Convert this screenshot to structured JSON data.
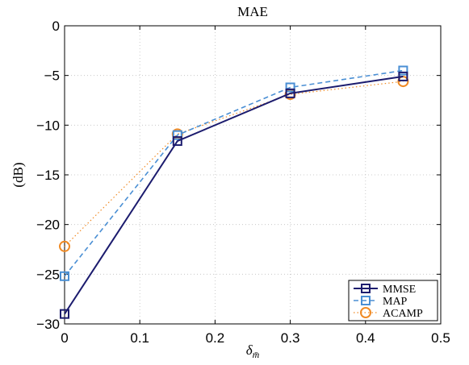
{
  "chart_data": {
    "type": "line",
    "title": "MAE",
    "xlabel": "δ",
    "xlabel_sub": "m̄",
    "ylabel": "(dB)",
    "xlim": [
      0,
      0.5
    ],
    "ylim": [
      -30,
      0
    ],
    "xticks": [
      0,
      0.1,
      0.2,
      0.3,
      0.4,
      0.5
    ],
    "xtick_labels": [
      "0",
      "0.1",
      "0.2",
      "0.3",
      "0.4",
      "0.5"
    ],
    "yticks": [
      0,
      -5,
      -10,
      -15,
      -20,
      -25,
      -30
    ],
    "ytick_labels": [
      "0",
      "−5",
      "−10",
      "−15",
      "−20",
      "−25",
      "−30"
    ],
    "grid": true,
    "legend_position": "bottom-right",
    "x": [
      0,
      0.15,
      0.3,
      0.45
    ],
    "series": [
      {
        "name": "MMSE",
        "values": [
          -29.0,
          -11.6,
          -6.8,
          -5.1
        ],
        "color": "#1c1c6e",
        "line": "solid",
        "marker": "square"
      },
      {
        "name": "MAP",
        "values": [
          -25.2,
          -11.0,
          -6.2,
          -4.5
        ],
        "color": "#4a8fd4",
        "line": "dashed",
        "marker": "square"
      },
      {
        "name": "ACAMP",
        "values": [
          -22.2,
          -10.9,
          -6.9,
          -5.6
        ],
        "color": "#f08a24",
        "line": "dotted",
        "marker": "circle"
      }
    ]
  }
}
